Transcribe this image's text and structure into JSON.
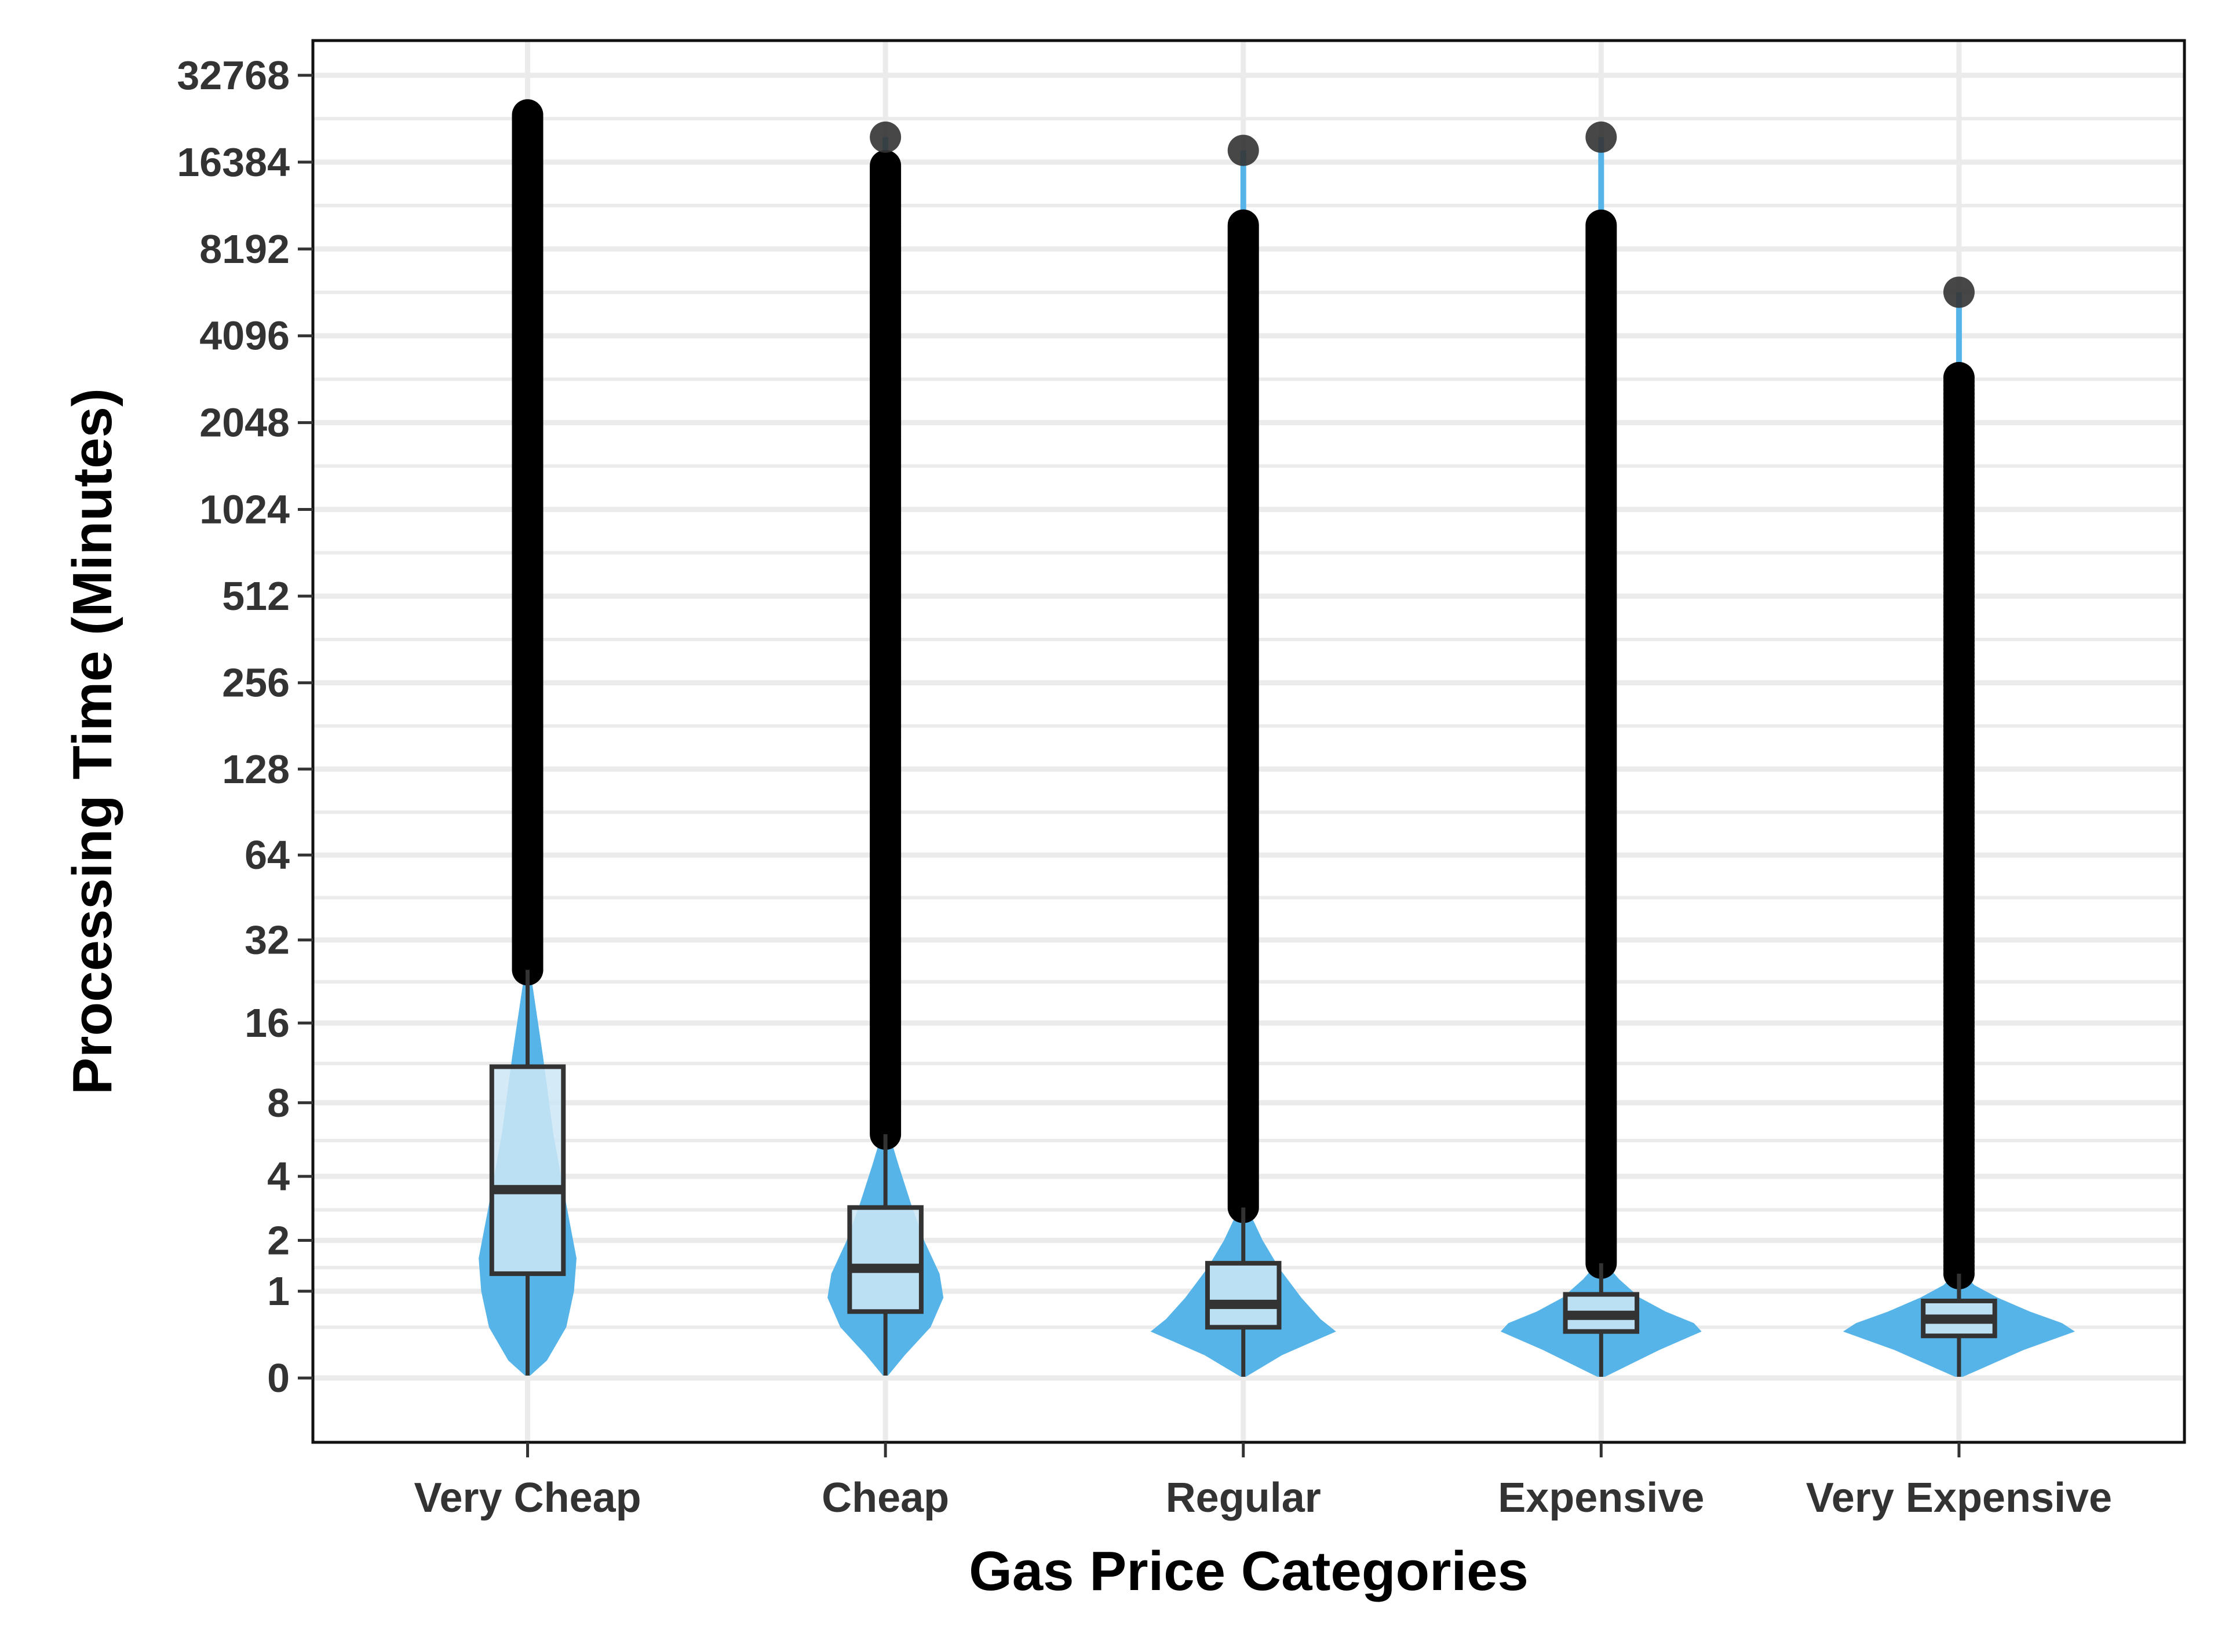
{
  "chart_data": {
    "type": "violin",
    "xlabel": "Gas Price Categories",
    "ylabel": "Processing Time (Minutes)",
    "y_scale": "pseudo-log2",
    "y_ticks": [
      0,
      1,
      2,
      4,
      8,
      16,
      32,
      64,
      128,
      256,
      512,
      1024,
      2048,
      4096,
      8192,
      16384,
      32768
    ],
    "y_tick_labels": [
      "0",
      "1",
      "2",
      "4",
      "8",
      "16",
      "32",
      "64",
      "128",
      "256",
      "512",
      "1024",
      "2048",
      "4096",
      "8192",
      "16384",
      "32768"
    ],
    "grid": true,
    "legend": "none",
    "categories": [
      "Very Cheap",
      "Cheap",
      "Regular",
      "Expensive",
      "Very Expensive"
    ],
    "groups": [
      {
        "category": "Very Cheap",
        "box": {
          "q1": 1.3,
          "median": 3.5,
          "q3": 11
        },
        "whisker": {
          "low": 0.02,
          "high": 25
        },
        "outlier_range": [
          25,
          24000
        ],
        "violin": {
          "min": 0.02,
          "max": 25,
          "density": [
            [
              0.02,
              0.02
            ],
            [
              0.15,
              0.15
            ],
            [
              0.5,
              0.3
            ],
            [
              1,
              0.36
            ],
            [
              1.6,
              0.38
            ],
            [
              3,
              0.3
            ],
            [
              6,
              0.2
            ],
            [
              12,
              0.12
            ],
            [
              25,
              0.02
            ]
          ]
        }
      },
      {
        "category": "Cheap",
        "box": {
          "q1": 0.7,
          "median": 1.4,
          "q3": 2.9
        },
        "whisker": {
          "low": 0.02,
          "high": 6
        },
        "outlier_range": [
          6,
          16000
        ],
        "top_point": 20000,
        "violin": {
          "min": 0.02,
          "max": 6,
          "density": [
            [
              0.02,
              0.02
            ],
            [
              0.2,
              0.15
            ],
            [
              0.5,
              0.35
            ],
            [
              0.9,
              0.45
            ],
            [
              1.3,
              0.42
            ],
            [
              2,
              0.3
            ],
            [
              3,
              0.2
            ],
            [
              4.5,
              0.1
            ],
            [
              6,
              0.03
            ]
          ]
        }
      },
      {
        "category": "Regular",
        "box": {
          "q1": 0.5,
          "median": 0.8,
          "q3": 1.5
        },
        "whisker": {
          "low": 0.01,
          "high": 2.9
        },
        "outlier_range": [
          2.9,
          10000
        ],
        "top_point": 18000,
        "violin": {
          "min": 0.01,
          "max": 2.9,
          "density": [
            [
              0.01,
              0.02
            ],
            [
              0.2,
              0.3
            ],
            [
              0.45,
              0.72
            ],
            [
              0.6,
              0.6
            ],
            [
              0.9,
              0.45
            ],
            [
              1.4,
              0.28
            ],
            [
              2,
              0.15
            ],
            [
              2.9,
              0.03
            ]
          ]
        }
      },
      {
        "category": "Expensive",
        "box": {
          "q1": 0.45,
          "median": 0.65,
          "q3": 0.95
        },
        "whisker": {
          "low": 0.01,
          "high": 1.5
        },
        "outlier_range": [
          1.5,
          10000
        ],
        "top_point": 20000,
        "violin": {
          "min": 0.01,
          "max": 1.5,
          "density": [
            [
              0.01,
              0.03
            ],
            [
              0.25,
              0.45
            ],
            [
              0.45,
              0.78
            ],
            [
              0.55,
              0.72
            ],
            [
              0.7,
              0.5
            ],
            [
              0.9,
              0.3
            ],
            [
              1.2,
              0.14
            ],
            [
              1.5,
              0.03
            ]
          ]
        }
      },
      {
        "category": "Very Expensive",
        "box": {
          "q1": 0.4,
          "median": 0.6,
          "q3": 0.85
        },
        "whisker": {
          "low": 0.01,
          "high": 1.3
        },
        "outlier_range": [
          1.3,
          3000
        ],
        "top_point": 5800,
        "violin": {
          "min": 0.01,
          "max": 1.3,
          "density": [
            [
              0.01,
              0.03
            ],
            [
              0.25,
              0.5
            ],
            [
              0.45,
              0.9
            ],
            [
              0.55,
              0.8
            ],
            [
              0.7,
              0.55
            ],
            [
              0.9,
              0.3
            ],
            [
              1.1,
              0.12
            ],
            [
              1.3,
              0.03
            ]
          ]
        }
      }
    ],
    "colors": {
      "violin": "#56b4e9",
      "box_fill": "#cde6f5",
      "box_edge": "#333333",
      "outlier": "#000000",
      "grid": "#ebebeb"
    }
  }
}
